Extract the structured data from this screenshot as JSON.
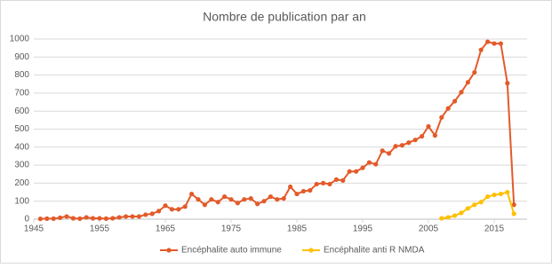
{
  "chart_data": {
    "type": "line",
    "title": "Nombre de publication par an",
    "x": [
      1946,
      1947,
      1948,
      1949,
      1950,
      1951,
      1952,
      1953,
      1954,
      1955,
      1956,
      1957,
      1958,
      1959,
      1960,
      1961,
      1962,
      1963,
      1964,
      1965,
      1966,
      1967,
      1968,
      1969,
      1970,
      1971,
      1972,
      1973,
      1974,
      1975,
      1976,
      1977,
      1978,
      1979,
      1980,
      1981,
      1982,
      1983,
      1984,
      1985,
      1986,
      1987,
      1988,
      1989,
      1990,
      1991,
      1992,
      1993,
      1994,
      1995,
      1996,
      1997,
      1998,
      1999,
      2000,
      2001,
      2002,
      2003,
      2004,
      2005,
      2006,
      2007,
      2008,
      2009,
      2010,
      2011,
      2012,
      2013,
      2014,
      2015,
      2016,
      2017,
      2018
    ],
    "series": [
      {
        "name": "Encéphalite auto immune",
        "color": "#e35b2a",
        "values": [
          2,
          3,
          3,
          8,
          15,
          5,
          3,
          10,
          5,
          5,
          3,
          5,
          10,
          15,
          15,
          15,
          25,
          30,
          45,
          75,
          55,
          55,
          70,
          140,
          110,
          80,
          110,
          95,
          125,
          110,
          90,
          110,
          115,
          85,
          100,
          125,
          110,
          115,
          180,
          140,
          155,
          160,
          195,
          200,
          195,
          220,
          215,
          265,
          265,
          285,
          315,
          305,
          380,
          365,
          405,
          410,
          425,
          440,
          460,
          515,
          465,
          565,
          615,
          655,
          705,
          760,
          815,
          940,
          985,
          975,
          975,
          755,
          80
        ]
      },
      {
        "name": "Encéphalite anti R NMDA",
        "color": "#ffc000",
        "values": [
          null,
          null,
          null,
          null,
          null,
          null,
          null,
          null,
          null,
          null,
          null,
          null,
          null,
          null,
          null,
          null,
          null,
          null,
          null,
          null,
          null,
          null,
          null,
          null,
          null,
          null,
          null,
          null,
          null,
          null,
          null,
          null,
          null,
          null,
          null,
          null,
          null,
          null,
          null,
          null,
          null,
          null,
          null,
          null,
          null,
          null,
          null,
          null,
          null,
          null,
          null,
          null,
          null,
          null,
          null,
          null,
          null,
          null,
          null,
          null,
          null,
          5,
          10,
          20,
          35,
          60,
          80,
          95,
          125,
          135,
          140,
          150,
          30
        ]
      }
    ],
    "xlim": [
      1945,
      2020
    ],
    "xticks": [
      1945,
      1955,
      1965,
      1975,
      1985,
      1995,
      2005,
      2015
    ],
    "ylim": [
      0,
      1000
    ],
    "yticks": [
      0,
      100,
      200,
      300,
      400,
      500,
      600,
      700,
      800,
      900,
      1000
    ],
    "grid": true,
    "legend": "bottom"
  }
}
